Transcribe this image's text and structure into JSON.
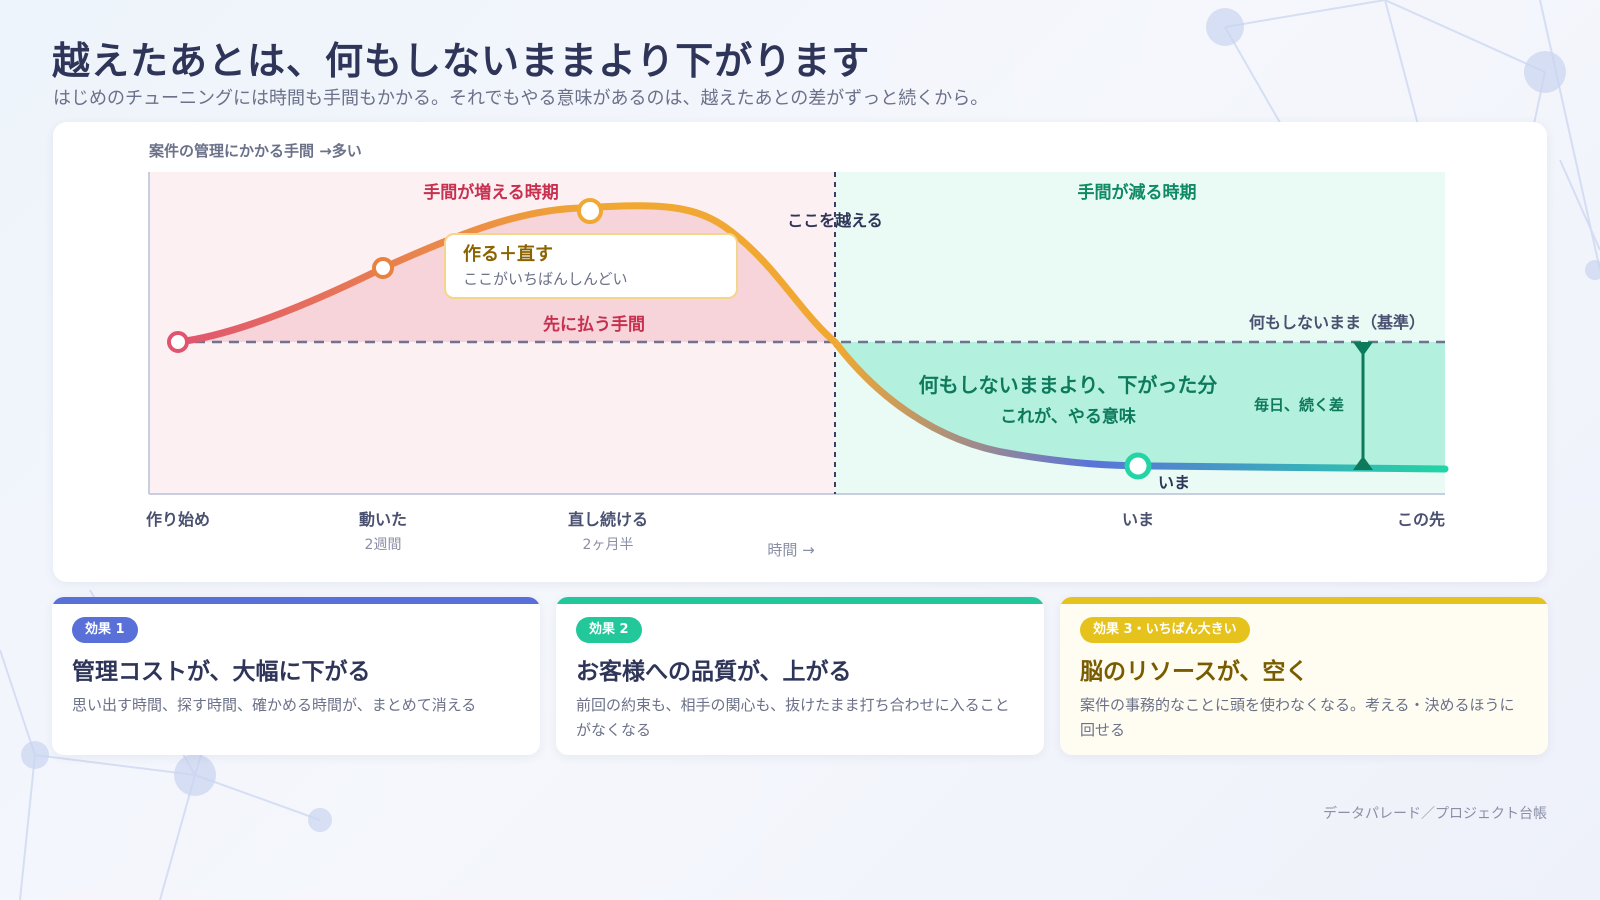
{
  "header": {
    "title": "越えたあとは、何もしないままより下がります",
    "subtitle": "はじめのチューニングには時間も手間もかかる。それでもやる意味があるのは、越えたあとの差がずっと続くから。"
  },
  "diagram": {
    "y_axis_label": "案件の管理にかかる手間 →多い",
    "x_axis_label": "時間 →",
    "zones": {
      "increase": "手間が増える時期",
      "decrease": "手間が減る時期"
    },
    "crossing_label": "ここを越える",
    "baseline_label": "何もしないまま（基準）",
    "paid_first_label": "先に払う手間",
    "callout": {
      "title": "作る＋直す",
      "body": "ここがいちばんしんどい"
    },
    "gain": {
      "line1": "何もしないままより、下がった分",
      "line2": "これが、やる意味"
    },
    "gap_label": "毎日、続く差",
    "now_point_label": "いま",
    "ticks": [
      {
        "label": "作り始め",
        "sub": ""
      },
      {
        "label": "動いた",
        "sub": "2週間"
      },
      {
        "label": "直し続ける",
        "sub": "2ヶ月半"
      },
      {
        "label": "いま",
        "sub": ""
      },
      {
        "label": "この先",
        "sub": ""
      }
    ],
    "colors": {
      "increase_zone": "#fdf0f2",
      "decrease_zone": "#eafaf4",
      "cost_fill": "#f7d3da",
      "gain_fill": "#b4f0de",
      "curve_start": "#e05470",
      "curve_peak": "#f0a832",
      "curve_low": "#5a74d8",
      "curve_end": "#22d4a6"
    }
  },
  "effects": [
    {
      "badge": "効果 1",
      "title": "管理コストが、大幅に下がる",
      "desc": "思い出す時間、探す時間、確かめる時間が、まとめて消える",
      "accent": "#5870d8",
      "title_color": "#2e3558"
    },
    {
      "badge": "効果 2",
      "title": "お客様への品質が、上がる",
      "desc": "前回の約束も、相手の関心も、抜けたまま打ち合わせに入ることがなくなる",
      "accent": "#22c89a",
      "title_color": "#2e3558"
    },
    {
      "badge": "効果 3・いちばん大きい",
      "title": "脳のリソースが、空く",
      "desc": "案件の事務的なことに頭を使わなくなる。考える・決めるほうに回せる",
      "accent": "#e6c21c",
      "title_color": "#7a5c00"
    }
  ],
  "footer": {
    "credit": "データパレード／プロジェクト台帳"
  }
}
